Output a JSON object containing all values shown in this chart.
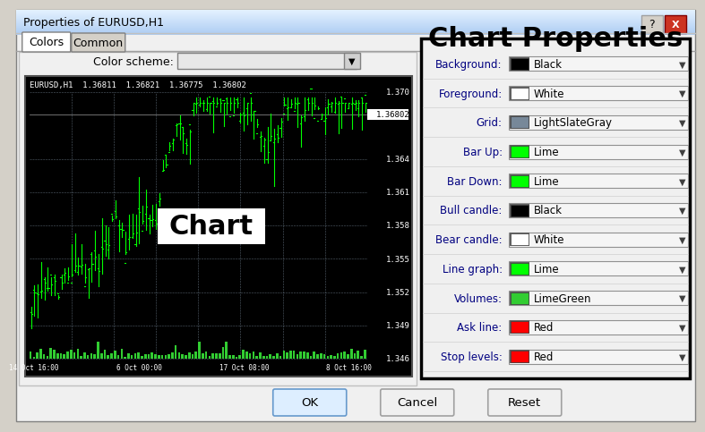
{
  "title": "Chart Properties",
  "dialog_title": "Properties of EURUSD,H1",
  "tab_colors": "Colors",
  "tab_common": "Common",
  "color_scheme_label": "Color scheme:",
  "properties": [
    {
      "label": "Background:",
      "color_box": "#000000",
      "color_name": "Black"
    },
    {
      "label": "Foreground:",
      "color_box": "#ffffff",
      "color_name": "White"
    },
    {
      "label": "Grid:",
      "color_box": "#778899",
      "color_name": "LightSlateGray"
    },
    {
      "label": "Bar Up:",
      "color_box": "#00ff00",
      "color_name": "Lime"
    },
    {
      "label": "Bar Down:",
      "color_box": "#00ff00",
      "color_name": "Lime"
    },
    {
      "label": "Bull candle:",
      "color_box": "#000000",
      "color_name": "Black"
    },
    {
      "label": "Bear candle:",
      "color_box": "#ffffff",
      "color_name": "White"
    },
    {
      "label": "Line graph:",
      "color_box": "#00ff00",
      "color_name": "Lime"
    },
    {
      "label": "Volumes:",
      "color_box": "#32cd32",
      "color_name": "LimeGreen"
    },
    {
      "label": "Ask line:",
      "color_box": "#ff0000",
      "color_name": "Red"
    },
    {
      "label": "Stop levels:",
      "color_box": "#ff0000",
      "color_name": "Red"
    }
  ],
  "chart_label": "Chart",
  "chart_header": "EURUSD,H1  1.36811  1.36821  1.36775  1.36802",
  "price_levels": [
    "1.370",
    "1.36802",
    "1.364",
    "1.361",
    "1.358",
    "1.355",
    "1.352",
    "1.349",
    "1.346"
  ],
  "time_labels": [
    "14 Oct 16:00",
    "6 Oct 00:00",
    "17 Oct 08:00",
    "8 Oct 16:00"
  ],
  "buttons": [
    "OK",
    "Cancel",
    "Reset"
  ],
  "bg_color": "#d4d0c8",
  "dialog_bg": "#f0f0f0",
  "title_font_size": 22
}
